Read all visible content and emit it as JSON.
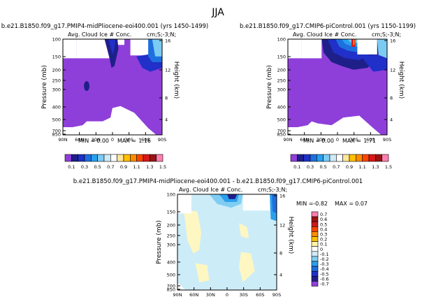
{
  "figure": {
    "suptitle": "JJA",
    "panel_title": "Avg. Cloud Ice # Conc.",
    "units_label": "cm;S;-3;N;"
  },
  "chart_data": [
    {
      "type": "heatmap",
      "id": "top-left",
      "case": "b.e21.B1850.f09_g17.PMIP4-midPliocene-eoi400.001",
      "years": "(yrs 1450-1499)",
      "title": "b.e21.B1850.f09_g17.PMIP4-midPliocene-eoi400.001 (yrs 1450-1499)",
      "subtitle": "Avg. Cloud Ice # Conc.",
      "units": "cm;S;-3;N;",
      "xlabel": "",
      "ylabel": "Pressure (mb)",
      "ylabel_right": "Height (km)",
      "x_ticks": [
        "90N",
        "60N",
        "30N",
        "0",
        "30S",
        "60S",
        "90S"
      ],
      "y_ticks": [
        "100",
        "150",
        "200",
        "250",
        "300",
        "400",
        "500",
        "700",
        "850"
      ],
      "height_ticks": [
        "16",
        "12",
        "8",
        "4"
      ],
      "min_label": "MIN =",
      "min": "0.00",
      "max_label": "MAX =",
      "max": "1.16",
      "colorbar_ticks": [
        "0.1",
        "0.3",
        "0.5",
        "0.7",
        "0.9",
        "1.1",
        "1.3",
        "1.5"
      ]
    },
    {
      "type": "heatmap",
      "id": "top-right",
      "case": "b.e21.B1850.f09_g17.CMIP6-piControl.001",
      "years": "(yrs 1150-1199)",
      "title": "b.e21.B1850.f09_g17.CMIP6-piControl.001 (yrs 1150-1199)",
      "subtitle": "Avg. Cloud Ice # Conc.",
      "units": "cm;S;-3;N;",
      "xlabel": "",
      "ylabel": "Pressure (mb)",
      "ylabel_right": "Height (km)",
      "x_ticks": [
        "90N",
        "60N",
        "30N",
        "0",
        "30S",
        "60S",
        "90S"
      ],
      "y_ticks": [
        "100",
        "150",
        "200",
        "250",
        "300",
        "400",
        "500",
        "700",
        "850"
      ],
      "height_ticks": [
        "16",
        "12",
        "8",
        "4"
      ],
      "min_label": "MIN =",
      "min": "0.00",
      "max_label": "MAX =",
      "max": "1.71",
      "colorbar_ticks": [
        "0.1",
        "0.3",
        "0.5",
        "0.7",
        "0.9",
        "1.1",
        "1.3",
        "1.5"
      ]
    },
    {
      "type": "heatmap",
      "id": "bottom-diff",
      "title": "b.e21.B1850.f09_g17.PMIP4-midPliocene-eoi400.001 - b.e21.B1850.f09_g17.CMIP6-piControl.001",
      "subtitle": "Avg. Cloud Ice # Conc.",
      "units": "cm;S;-3;N;",
      "xlabel": "",
      "ylabel": "Pressure (mb)",
      "ylabel_right": "Height (km)",
      "x_ticks": [
        "90N",
        "60N",
        "30N",
        "0",
        "30S",
        "60S",
        "90S"
      ],
      "y_ticks": [
        "100",
        "150",
        "200",
        "250",
        "300",
        "400",
        "500",
        "700",
        "850"
      ],
      "height_ticks": [
        "16",
        "12",
        "8",
        "4"
      ],
      "min_label": "MIN =",
      "min": "-0.82",
      "max_label": "MAX =",
      "max": "0.07",
      "colorbar_ticks": [
        "0.7",
        "0.6",
        "0.5",
        "0.4",
        "0.3",
        "0.2",
        "0.1",
        "0",
        "-0.1",
        "-0.2",
        "-0.3",
        "-0.4",
        "-0.5",
        "-0.6",
        "-0.7"
      ]
    }
  ],
  "colors": {
    "seq": [
      "#8f3fd9",
      "#1f1f8a",
      "#2030c8",
      "#1e6fe0",
      "#28a0ee",
      "#7ccbf3",
      "#cdeaf8",
      "#ffffff",
      "#ffe699",
      "#ffc000",
      "#ff8c00",
      "#ff4500",
      "#d81818",
      "#9a1414",
      "#ff7fb0"
    ],
    "div": [
      "#ff7fb0",
      "#9a1414",
      "#c81c1c",
      "#ff4500",
      "#ff8c00",
      "#ffc000",
      "#fff4a8",
      "#ffffff",
      "#ccecf8",
      "#7fcdf3",
      "#2aa0ee",
      "#1e6fe0",
      "#2030c8",
      "#1f1f8a",
      "#8f3fd9"
    ],
    "fill_base_seq": "#8f3fd9",
    "fill_base_div": "#ccecf8",
    "yellow_patch": "#fff7c2",
    "blue_patch": "#7fcdf3",
    "deep_blue": "#2030c8",
    "navy": "#1f1f8a"
  }
}
